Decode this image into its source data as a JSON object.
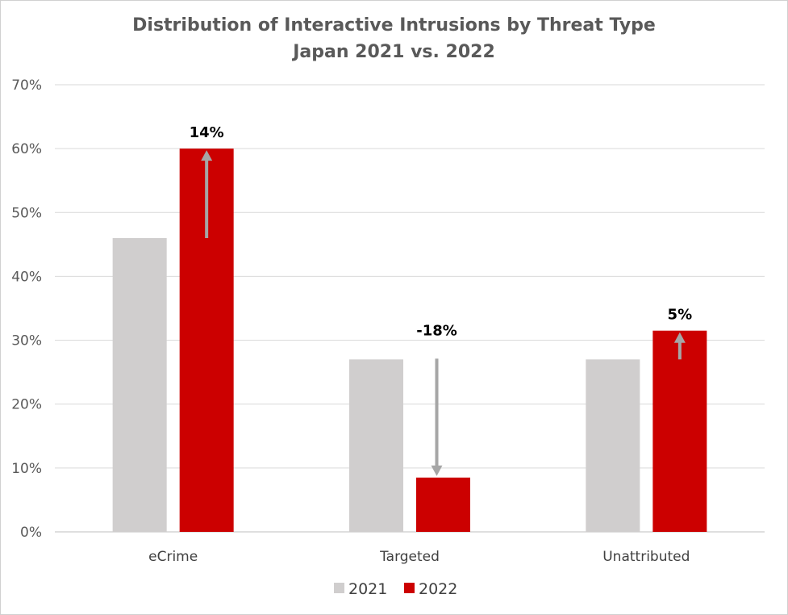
{
  "chart_data": {
    "type": "bar",
    "title": "Distribution of Interactive Intrusions by Threat Type",
    "subtitle": "Japan 2021 vs. 2022",
    "categories": [
      "eCrime",
      "Targeted",
      "Unattributed"
    ],
    "series": [
      {
        "name": "2021",
        "color": "#d0cece",
        "values": [
          46,
          27,
          27
        ]
      },
      {
        "name": "2022",
        "color": "#cc0000",
        "values": [
          60,
          8.5,
          31.5
        ]
      }
    ],
    "ylim": [
      0,
      70
    ],
    "yticks": [
      "0%",
      "10%",
      "20%",
      "30%",
      "40%",
      "50%",
      "60%",
      "70%"
    ],
    "grid": true,
    "legend_position": "bottom",
    "annotations": [
      {
        "category": "eCrime",
        "label": "14%",
        "direction": "up"
      },
      {
        "category": "Targeted",
        "label": "-18%",
        "direction": "down"
      },
      {
        "category": "Unattributed",
        "label": "5%",
        "direction": "up"
      }
    ],
    "arrow_color": "#a6a6a6"
  }
}
